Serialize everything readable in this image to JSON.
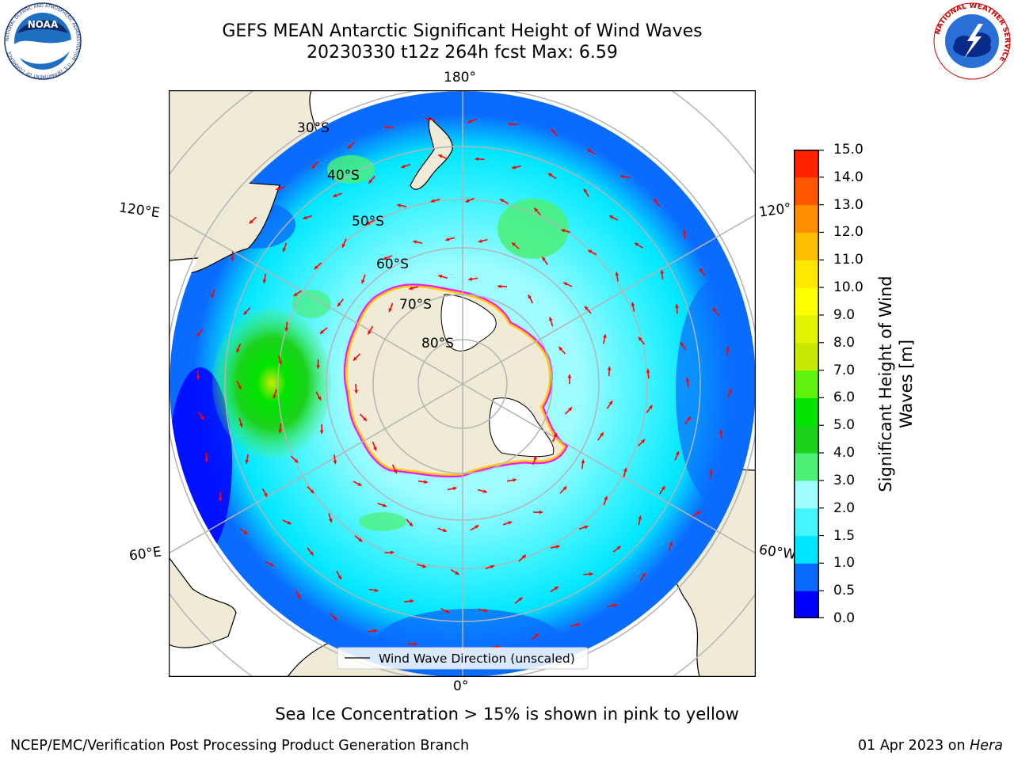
{
  "header": {
    "title_line1": "GEFS MEAN Antarctic Significant Height of Wind Waves",
    "title_line2": "20230330 t12z 264h fcst   Max: 6.59"
  },
  "logos": {
    "noaa": {
      "text": "NOAA",
      "ring_text": "NATIONAL OCEANIC AND ATMOSPHERIC ADMINISTRATION · U.S. DEPARTMENT OF COMMERCE"
    },
    "nws": {
      "ring_text": "NATIONAL WEATHER SERVICE"
    }
  },
  "map": {
    "projection": "south-polar-stereographic",
    "meridian_labels": {
      "top": "180°",
      "bottom": "0°",
      "left_upper": "120°E",
      "left_lower": "60°E",
      "right_upper": "120°",
      "right_lower": "60°W"
    },
    "parallel_labels": [
      "30°S",
      "40°S",
      "50°S",
      "60°S",
      "70°S",
      "80°S"
    ],
    "legend_label": "Wind Wave Direction (unscaled)",
    "colors": {
      "land": "#efebd7",
      "ice_shelf": "#ffffff",
      "grid": "#b4b4b4",
      "arrow": "#ff0000",
      "sea_ice_edge": "#ff00ff",
      "sea_ice_inner": "#ffcc00"
    }
  },
  "colorbar": {
    "title_line1": "Significant Height of Wind",
    "title_line2": "Waves [m]",
    "ticks": [
      "0.0",
      "0.5",
      "1.0",
      "1.5",
      "2.0",
      "3.0",
      "4.0",
      "5.0",
      "6.0",
      "7.0",
      "8.0",
      "9.0",
      "10.0",
      "11.0",
      "12.0",
      "13.0",
      "14.0",
      "15.0"
    ],
    "colors": [
      "#0000ff",
      "#0a6cff",
      "#00e6ff",
      "#44f4ff",
      "#9ffcff",
      "#4cf077",
      "#1cd21c",
      "#00e400",
      "#5ef20e",
      "#c8ea00",
      "#e1f300",
      "#fefe00",
      "#ffe800",
      "#ffbd00",
      "#ff8e00",
      "#ff5600",
      "#ff2400"
    ]
  },
  "caption": "Sea Ice Concentration > 15% is shown in pink to yellow",
  "footer": {
    "left": "NCEP/EMC/Verification Post Processing Product Generation Branch",
    "right_date": "01 Apr 2023 on",
    "right_host": "Hera"
  }
}
